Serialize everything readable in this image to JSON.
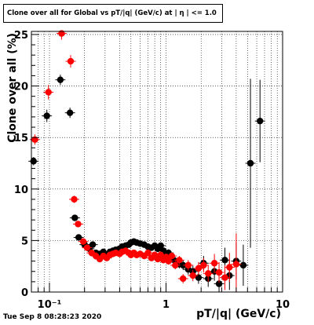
{
  "header": {
    "title": "Clone  over all for Global vs pT/|q| (GeV/c) at |  η | <= 1.0",
    "timestamp": "Tue Sep  8 08:28:23 2020"
  },
  "chart_data": {
    "type": "scatter",
    "xlabel": "pT/|q| (GeV/c)",
    "ylabel": "Clone  over all (%)",
    "xscale": "log",
    "xlim": [
      0.07,
      10
    ],
    "ylim": [
      0,
      25.3
    ],
    "xticks": [
      {
        "v": 0.1,
        "label": "10⁻¹"
      },
      {
        "v": 1,
        "label": "1"
      },
      {
        "v": 10,
        "label": "10"
      }
    ],
    "yticks": [
      0,
      5,
      10,
      15,
      20,
      25
    ],
    "grid": true,
    "series": [
      {
        "color": "#000000",
        "points": [
          [
            0.073,
            12.7,
            0.4
          ],
          [
            0.095,
            17.1,
            0.6
          ],
          [
            0.124,
            20.6,
            0.5
          ],
          [
            0.15,
            17.4,
            0.5
          ],
          [
            0.165,
            7.2,
            0.3
          ],
          [
            0.178,
            5.3,
            0.3
          ],
          [
            0.2,
            4.6,
            0.25
          ],
          [
            0.22,
            4.2,
            0.25
          ],
          [
            0.235,
            4.6,
            0.25
          ],
          [
            0.25,
            3.8,
            0.2
          ],
          [
            0.27,
            3.7,
            0.2
          ],
          [
            0.29,
            3.9,
            0.2
          ],
          [
            0.31,
            3.6,
            0.2
          ],
          [
            0.33,
            3.9,
            0.2
          ],
          [
            0.35,
            4.0,
            0.2
          ],
          [
            0.37,
            4.1,
            0.2
          ],
          [
            0.4,
            4.2,
            0.2
          ],
          [
            0.42,
            4.4,
            0.2
          ],
          [
            0.45,
            4.5,
            0.2
          ],
          [
            0.48,
            4.6,
            0.2
          ],
          [
            0.5,
            4.8,
            0.2
          ],
          [
            0.53,
            4.9,
            0.2
          ],
          [
            0.56,
            4.8,
            0.2
          ],
          [
            0.6,
            4.7,
            0.2
          ],
          [
            0.65,
            4.6,
            0.2
          ],
          [
            0.7,
            4.4,
            0.2
          ],
          [
            0.75,
            4.3,
            0.25
          ],
          [
            0.8,
            4.5,
            0.25
          ],
          [
            0.85,
            4.2,
            0.25
          ],
          [
            0.9,
            4.5,
            0.3
          ],
          [
            0.95,
            4.0,
            0.3
          ],
          [
            1.0,
            3.6,
            0.3
          ],
          [
            1.05,
            3.8,
            0.35
          ],
          [
            1.12,
            3.2,
            0.35
          ],
          [
            1.2,
            3.0,
            0.4
          ],
          [
            1.3,
            2.7,
            0.4
          ],
          [
            1.4,
            2.6,
            0.45
          ],
          [
            1.55,
            2.2,
            0.5
          ],
          [
            1.7,
            2.0,
            0.55
          ],
          [
            1.9,
            1.4,
            0.6
          ],
          [
            2.1,
            2.8,
            0.7
          ],
          [
            2.3,
            1.3,
            0.8
          ],
          [
            2.6,
            2.0,
            0.9
          ],
          [
            2.85,
            0.8,
            1.0
          ],
          [
            3.2,
            3.1,
            1.2
          ],
          [
            3.5,
            1.6,
            1.4
          ],
          [
            4.0,
            3.0,
            1.8
          ],
          [
            4.6,
            2.6,
            2.0
          ],
          [
            5.3,
            12.5,
            8.2
          ],
          [
            6.4,
            16.6,
            4.0
          ]
        ]
      },
      {
        "color": "#ff0000",
        "points": [
          [
            0.075,
            14.8,
            0.5
          ],
          [
            0.098,
            19.4,
            0.7
          ],
          [
            0.127,
            25.1,
            0.6
          ],
          [
            0.152,
            22.4,
            0.6
          ],
          [
            0.163,
            9.0,
            0.35
          ],
          [
            0.176,
            6.6,
            0.3
          ],
          [
            0.195,
            4.9,
            0.25
          ],
          [
            0.21,
            4.3,
            0.25
          ],
          [
            0.23,
            3.8,
            0.2
          ],
          [
            0.25,
            3.5,
            0.2
          ],
          [
            0.27,
            3.2,
            0.2
          ],
          [
            0.29,
            3.5,
            0.2
          ],
          [
            0.31,
            3.3,
            0.2
          ],
          [
            0.33,
            3.6,
            0.2
          ],
          [
            0.35,
            3.7,
            0.2
          ],
          [
            0.37,
            3.8,
            0.2
          ],
          [
            0.4,
            3.7,
            0.2
          ],
          [
            0.42,
            3.9,
            0.2
          ],
          [
            0.45,
            4.0,
            0.2
          ],
          [
            0.48,
            3.8,
            0.2
          ],
          [
            0.5,
            3.6,
            0.2
          ],
          [
            0.53,
            3.8,
            0.2
          ],
          [
            0.56,
            3.6,
            0.2
          ],
          [
            0.6,
            3.7,
            0.2
          ],
          [
            0.65,
            3.5,
            0.2
          ],
          [
            0.7,
            3.8,
            0.25
          ],
          [
            0.75,
            3.3,
            0.25
          ],
          [
            0.8,
            3.6,
            0.25
          ],
          [
            0.85,
            3.2,
            0.25
          ],
          [
            0.9,
            3.6,
            0.3
          ],
          [
            0.95,
            3.1,
            0.3
          ],
          [
            1.0,
            3.4,
            0.3
          ],
          [
            1.05,
            3.0,
            0.35
          ],
          [
            1.12,
            3.5,
            0.35
          ],
          [
            1.2,
            2.6,
            0.4
          ],
          [
            1.3,
            3.1,
            0.4
          ],
          [
            1.4,
            1.3,
            0.45
          ],
          [
            1.55,
            2.6,
            0.5
          ],
          [
            1.7,
            1.6,
            0.55
          ],
          [
            1.9,
            2.3,
            0.6
          ],
          [
            2.1,
            2.6,
            0.7
          ],
          [
            2.3,
            1.8,
            0.8
          ],
          [
            2.6,
            2.8,
            0.9
          ],
          [
            2.85,
            1.9,
            1.0
          ],
          [
            3.2,
            1.4,
            1.2
          ],
          [
            3.5,
            2.4,
            1.4
          ],
          [
            4.0,
            2.7,
            3.0
          ]
        ]
      }
    ]
  }
}
